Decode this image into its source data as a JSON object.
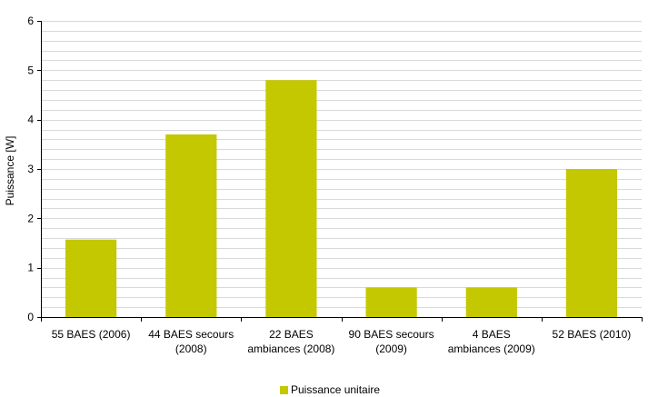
{
  "chart_data": {
    "type": "bar",
    "categories": [
      [
        "55 BAES (2006)"
      ],
      [
        "44 BAES secours",
        "(2008)"
      ],
      [
        "22 BAES",
        "ambiances (2008)"
      ],
      [
        "90 BAES secours",
        "(2009)"
      ],
      [
        "4 BAES",
        "ambiances (2009)"
      ],
      [
        "52 BAES (2010)"
      ]
    ],
    "series": [
      {
        "name": "Puissance unitaire",
        "values": [
          1.57,
          3.7,
          4.8,
          0.6,
          0.6,
          3.0
        ]
      }
    ],
    "ylabel": "Puissance [W]",
    "ylim": [
      0,
      6
    ],
    "yticks": [
      0,
      1,
      2,
      3,
      4,
      5,
      6
    ],
    "minor_grid_step": 0.2,
    "grid": true,
    "legend_position": "bottom-center",
    "bar_color": "#c3c800",
    "grid_color": "#d9d9d9"
  }
}
